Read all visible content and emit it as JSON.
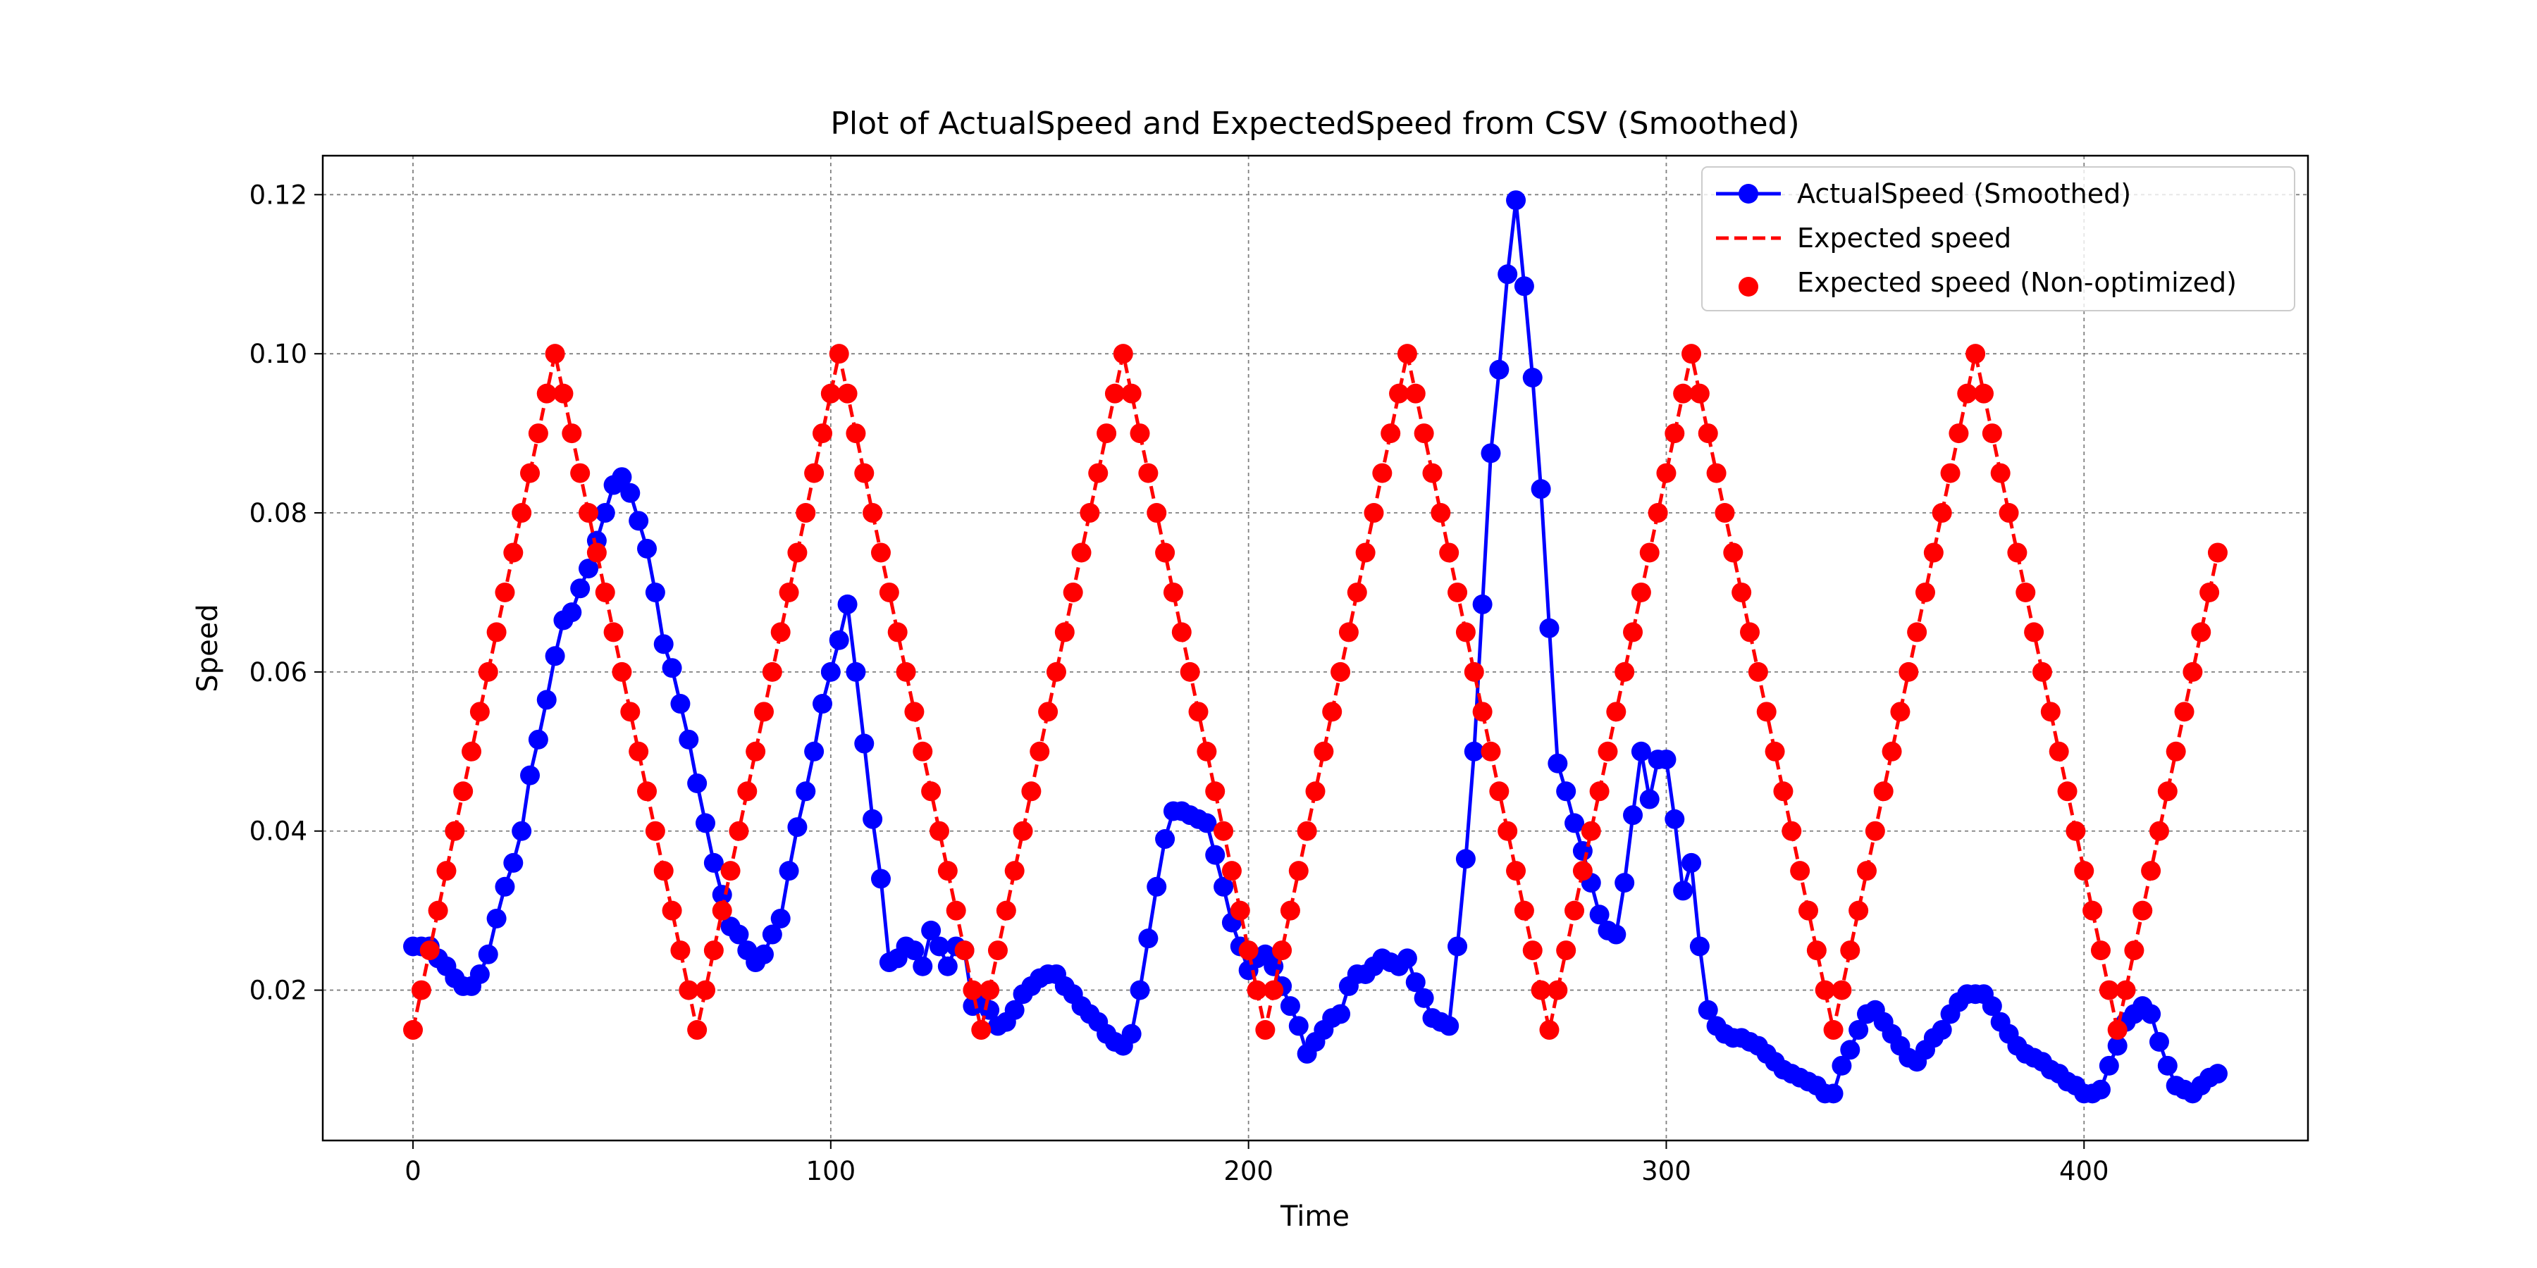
{
  "chart_data": {
    "type": "line",
    "title": "Plot of ActualSpeed and ExpectedSpeed from CSV (Smoothed)",
    "xlabel": "Time",
    "ylabel": "Speed",
    "xlim": [
      -21.6,
      453.6
    ],
    "ylim": [
      0.0011,
      0.1249
    ],
    "xticks": [
      0,
      100,
      200,
      300,
      400
    ],
    "yticks": [
      0.02,
      0.04,
      0.06,
      0.08,
      {
        "value": 0.1,
        "label": "0.10"
      },
      0.12
    ],
    "grid": true,
    "legend": "upper right",
    "x": [
      0,
      2,
      4,
      6,
      8,
      10,
      12,
      14,
      16,
      18,
      20,
      22,
      24,
      26,
      28,
      30,
      32,
      34,
      36,
      38,
      40,
      42,
      44,
      46,
      48,
      50,
      52,
      54,
      56,
      58,
      60,
      62,
      64,
      66,
      68,
      70,
      72,
      74,
      76,
      78,
      80,
      82,
      84,
      86,
      88,
      90,
      92,
      94,
      96,
      98,
      100,
      102,
      104,
      106,
      108,
      110,
      112,
      114,
      116,
      118,
      120,
      122,
      124,
      126,
      128,
      130,
      132,
      134,
      136,
      138,
      140,
      142,
      144,
      146,
      148,
      150,
      152,
      154,
      156,
      158,
      160,
      162,
      164,
      166,
      168,
      170,
      172,
      174,
      176,
      178,
      180,
      182,
      184,
      186,
      188,
      190,
      192,
      194,
      196,
      198,
      200,
      202,
      204,
      206,
      208,
      210,
      212,
      214,
      216,
      218,
      220,
      222,
      224,
      226,
      228,
      230,
      232,
      234,
      236,
      238,
      240,
      242,
      244,
      246,
      248,
      250,
      252,
      254,
      256,
      258,
      260,
      262,
      264,
      266,
      268,
      270,
      272,
      274,
      276,
      278,
      280,
      282,
      284,
      286,
      288,
      290,
      292,
      294,
      296,
      298,
      300,
      302,
      304,
      306,
      308,
      310,
      312,
      314,
      316,
      318,
      320,
      322,
      324,
      326,
      328,
      330,
      332,
      334,
      336,
      338,
      340,
      342,
      344,
      346,
      348,
      350,
      352,
      354,
      356,
      358,
      360,
      362,
      364,
      366,
      368,
      370,
      372,
      374,
      376,
      378,
      380,
      382,
      384,
      386,
      388,
      390,
      392,
      394,
      396,
      398,
      400,
      402,
      404,
      406,
      408,
      410,
      412,
      414,
      416,
      418,
      420,
      422,
      424,
      426,
      428,
      430,
      432
    ],
    "series": [
      {
        "name": "ActualSpeed (Smoothed)",
        "color": "#0000ff",
        "kind": "line-marker",
        "values": [
          0.0255,
          0.0255,
          0.0255,
          0.024,
          0.023,
          0.0215,
          0.0205,
          0.0205,
          0.022,
          0.0245,
          0.029,
          0.033,
          0.036,
          0.04,
          0.047,
          0.0515,
          0.0565,
          0.062,
          0.0665,
          0.0675,
          0.0705,
          0.073,
          0.0765,
          0.08,
          0.0835,
          0.0845,
          0.0825,
          0.079,
          0.0755,
          0.07,
          0.0635,
          0.0605,
          0.056,
          0.0515,
          0.046,
          0.041,
          0.036,
          0.032,
          0.028,
          0.027,
          0.025,
          0.0235,
          0.0245,
          0.027,
          0.029,
          0.035,
          0.0405,
          0.045,
          0.05,
          0.056,
          0.06,
          0.064,
          0.0685,
          0.06,
          0.051,
          0.0415,
          0.034,
          0.0235,
          0.024,
          0.0255,
          0.025,
          0.023,
          0.0275,
          0.0255,
          0.023,
          0.0255,
          0.025,
          0.018,
          0.019,
          0.0175,
          0.0155,
          0.016,
          0.0175,
          0.0195,
          0.0205,
          0.0215,
          0.022,
          0.022,
          0.0205,
          0.0195,
          0.018,
          0.017,
          0.016,
          0.0145,
          0.0135,
          0.013,
          0.0145,
          0.02,
          0.0265,
          0.033,
          0.039,
          0.0425,
          0.0425,
          0.042,
          0.0415,
          0.041,
          0.037,
          0.033,
          0.0285,
          0.0255,
          0.0225,
          0.024,
          0.0245,
          0.023,
          0.0205,
          0.018,
          0.0155,
          0.012,
          0.0135,
          0.015,
          0.0165,
          0.017,
          0.0205,
          0.022,
          0.022,
          0.023,
          0.024,
          0.0235,
          0.023,
          0.024,
          0.021,
          0.019,
          0.0165,
          0.016,
          0.0155,
          0.0255,
          0.0365,
          0.05,
          0.0685,
          0.0875,
          0.098,
          0.11,
          0.1193,
          0.1085,
          0.097,
          0.083,
          0.0655,
          0.0485,
          0.045,
          0.041,
          0.0375,
          0.0335,
          0.0295,
          0.0275,
          0.027,
          0.0335,
          0.042,
          0.05,
          0.044,
          0.049,
          0.049,
          0.0415,
          0.0325,
          0.036,
          0.0255,
          0.0175,
          0.0155,
          0.0145,
          0.014,
          0.014,
          0.0135,
          0.013,
          0.012,
          0.011,
          0.01,
          0.0095,
          0.009,
          0.0085,
          0.008,
          0.007,
          0.007,
          0.0105,
          0.0125,
          0.015,
          0.017,
          0.0175,
          0.016,
          0.0145,
          0.013,
          0.0115,
          0.011,
          0.0125,
          0.014,
          0.015,
          0.017,
          0.0185,
          0.0195,
          0.0195,
          0.0195,
          0.018,
          0.016,
          0.0145,
          0.013,
          0.012,
          0.0115,
          0.011,
          0.01,
          0.0095,
          0.0085,
          0.008,
          0.007,
          0.007,
          0.0075,
          0.0105,
          0.013,
          0.016,
          0.017,
          0.018,
          0.017,
          0.0135,
          0.0105,
          0.008,
          0.0075,
          0.007,
          0.008,
          0.009,
          0.0095
        ]
      },
      {
        "name": "Expected speed",
        "color": "#ff0000",
        "kind": "dashed",
        "values": [
          0.015,
          0.02,
          0.025,
          0.03,
          0.035,
          0.04,
          0.045,
          0.05,
          0.055,
          0.06,
          0.065,
          0.07,
          0.075,
          0.08,
          0.085,
          0.09,
          0.095,
          0.1,
          0.095,
          0.09,
          0.085,
          0.08,
          0.075,
          0.07,
          0.065,
          0.06,
          0.055,
          0.05,
          0.045,
          0.04,
          0.035,
          0.03,
          0.025,
          0.02,
          0.015,
          0.02,
          0.025,
          0.03,
          0.035,
          0.04,
          0.045,
          0.05,
          0.055,
          0.06,
          0.065,
          0.07,
          0.075,
          0.08,
          0.085,
          0.09,
          0.095,
          0.1,
          0.095,
          0.09,
          0.085,
          0.08,
          0.075,
          0.07,
          0.065,
          0.06,
          0.055,
          0.05,
          0.045,
          0.04,
          0.035,
          0.03,
          0.025,
          0.02,
          0.015,
          0.02,
          0.025,
          0.03,
          0.035,
          0.04,
          0.045,
          0.05,
          0.055,
          0.06,
          0.065,
          0.07,
          0.075,
          0.08,
          0.085,
          0.09,
          0.095,
          0.1,
          0.095,
          0.09,
          0.085,
          0.08,
          0.075,
          0.07,
          0.065,
          0.06,
          0.055,
          0.05,
          0.045,
          0.04,
          0.035,
          0.03,
          0.025,
          0.02,
          0.015,
          0.02,
          0.025,
          0.03,
          0.035,
          0.04,
          0.045,
          0.05,
          0.055,
          0.06,
          0.065,
          0.07,
          0.075,
          0.08,
          0.085,
          0.09,
          0.095,
          0.1,
          0.095,
          0.09,
          0.085,
          0.08,
          0.075,
          0.07,
          0.065,
          0.06,
          0.055,
          0.05,
          0.045,
          0.04,
          0.035,
          0.03,
          0.025,
          0.02,
          0.015,
          0.02,
          0.025,
          0.03,
          0.035,
          0.04,
          0.045,
          0.05,
          0.055,
          0.06,
          0.065,
          0.07,
          0.075,
          0.08,
          0.085,
          0.09,
          0.095,
          0.1,
          0.095,
          0.09,
          0.085,
          0.08,
          0.075,
          0.07,
          0.065,
          0.06,
          0.055,
          0.05,
          0.045,
          0.04,
          0.035,
          0.03,
          0.025,
          0.02,
          0.015,
          0.02,
          0.025,
          0.03,
          0.035,
          0.04,
          0.045,
          0.05,
          0.055,
          0.06,
          0.065,
          0.07,
          0.075,
          0.08,
          0.085,
          0.09,
          0.095,
          0.1,
          0.095,
          0.09,
          0.085,
          0.08,
          0.075,
          0.07,
          0.065,
          0.06,
          0.055,
          0.05,
          0.045,
          0.04,
          0.035,
          0.03,
          0.025,
          0.02,
          0.015,
          0.02,
          0.025,
          0.03,
          0.035,
          0.04,
          0.045,
          0.05,
          0.055,
          0.06,
          0.065,
          0.07,
          0.075
        ]
      },
      {
        "name": "Expected speed (Non-optimized)",
        "color": "#ff0000",
        "kind": "scatter",
        "values": [
          0.015,
          0.02,
          0.025,
          0.03,
          0.035,
          0.04,
          0.045,
          0.05,
          0.055,
          0.06,
          0.065,
          0.07,
          0.075,
          0.08,
          0.085,
          0.09,
          0.095,
          0.1,
          0.095,
          0.09,
          0.085,
          0.08,
          0.075,
          0.07,
          0.065,
          0.06,
          0.055,
          0.05,
          0.045,
          0.04,
          0.035,
          0.03,
          0.025,
          0.02,
          0.015,
          0.02,
          0.025,
          0.03,
          0.035,
          0.04,
          0.045,
          0.05,
          0.055,
          0.06,
          0.065,
          0.07,
          0.075,
          0.08,
          0.085,
          0.09,
          0.095,
          0.1,
          0.095,
          0.09,
          0.085,
          0.08,
          0.075,
          0.07,
          0.065,
          0.06,
          0.055,
          0.05,
          0.045,
          0.04,
          0.035,
          0.03,
          0.025,
          0.02,
          0.015,
          0.02,
          0.025,
          0.03,
          0.035,
          0.04,
          0.045,
          0.05,
          0.055,
          0.06,
          0.065,
          0.07,
          0.075,
          0.08,
          0.085,
          0.09,
          0.095,
          0.1,
          0.095,
          0.09,
          0.085,
          0.08,
          0.075,
          0.07,
          0.065,
          0.06,
          0.055,
          0.05,
          0.045,
          0.04,
          0.035,
          0.03,
          0.025,
          0.02,
          0.015,
          0.02,
          0.025,
          0.03,
          0.035,
          0.04,
          0.045,
          0.05,
          0.055,
          0.06,
          0.065,
          0.07,
          0.075,
          0.08,
          0.085,
          0.09,
          0.095,
          0.1,
          0.095,
          0.09,
          0.085,
          0.08,
          0.075,
          0.07,
          0.065,
          0.06,
          0.055,
          0.05,
          0.045,
          0.04,
          0.035,
          0.03,
          0.025,
          0.02,
          0.015,
          0.02,
          0.025,
          0.03,
          0.035,
          0.04,
          0.045,
          0.05,
          0.055,
          0.06,
          0.065,
          0.07,
          0.075,
          0.08,
          0.085,
          0.09,
          0.095,
          0.1,
          0.095,
          0.09,
          0.085,
          0.08,
          0.075,
          0.07,
          0.065,
          0.06,
          0.055,
          0.05,
          0.045,
          0.04,
          0.035,
          0.03,
          0.025,
          0.02,
          0.015,
          0.02,
          0.025,
          0.03,
          0.035,
          0.04,
          0.045,
          0.05,
          0.055,
          0.06,
          0.065,
          0.07,
          0.075,
          0.08,
          0.085,
          0.09,
          0.095,
          0.1,
          0.095,
          0.09,
          0.085,
          0.08,
          0.075,
          0.07,
          0.065,
          0.06,
          0.055,
          0.05,
          0.045,
          0.04,
          0.035,
          0.03,
          0.025,
          0.02,
          0.015,
          0.02,
          0.025,
          0.03,
          0.035,
          0.04,
          0.045,
          0.05,
          0.055,
          0.06,
          0.065,
          0.07,
          0.075
        ]
      }
    ]
  }
}
